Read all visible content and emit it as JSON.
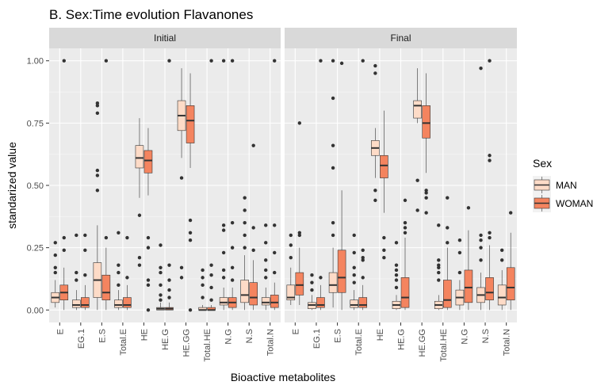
{
  "chart_data": {
    "type": "boxplot",
    "title": "B. Sex:Time evolution Flavanones",
    "xlabel": "Bioactive metabolites",
    "ylabel": "standarized value",
    "ylim": [
      -0.05,
      1.05
    ],
    "yticks": [
      "0.00",
      "0.25",
      "0.50",
      "0.75",
      "1.00"
    ],
    "grid": true,
    "categories": [
      "E",
      "EG.1",
      "E.S",
      "Total.E",
      "HE",
      "HE.G",
      "HE.GG",
      "Total.HE",
      "N.G",
      "N.S",
      "Total.N"
    ],
    "legend": {
      "title": "Sex",
      "position": "right",
      "entries": [
        {
          "name": "MAN",
          "color": "#FDDBC7"
        },
        {
          "name": "WOMAN",
          "color": "#F4845F"
        }
      ]
    },
    "panels": [
      {
        "label": "Initial",
        "series": [
          {
            "name": "MAN",
            "boxes": [
              {
                "low": 0.01,
                "q1": 0.03,
                "median": 0.05,
                "q3": 0.07,
                "high": 0.12,
                "outliers": [
                  0.15,
                  0.17,
                  0.22,
                  0.27
                ]
              },
              {
                "low": 0.0,
                "q1": 0.01,
                "median": 0.02,
                "q3": 0.04,
                "high": 0.08,
                "outliers": [
                  0.12,
                  0.15,
                  0.3
                ]
              },
              {
                "low": 0.0,
                "q1": 0.05,
                "median": 0.12,
                "q3": 0.19,
                "high": 0.34,
                "outliers": [
                  0.48,
                  0.54,
                  0.56,
                  0.79,
                  0.82,
                  0.83
                ]
              },
              {
                "low": 0.0,
                "q1": 0.01,
                "median": 0.02,
                "q3": 0.04,
                "high": 0.08,
                "outliers": [
                  0.1,
                  0.15,
                  0.18,
                  0.31
                ]
              },
              {
                "low": 0.45,
                "q1": 0.57,
                "median": 0.61,
                "q3": 0.66,
                "high": 0.77,
                "outliers": [
                  0.38,
                  0.21,
                  0.18
                ]
              },
              {
                "low": 0.0,
                "q1": 0.0,
                "median": 0.005,
                "q3": 0.01,
                "high": 0.03,
                "outliers": [
                  0.04,
                  0.06,
                  0.1,
                  0.15,
                  0.17,
                  0.26
                ]
              },
              {
                "low": 0.61,
                "q1": 0.72,
                "median": 0.78,
                "q3": 0.84,
                "high": 0.97,
                "outliers": [
                  0.53,
                  0.17,
                  0.13
                ]
              },
              {
                "low": 0.0,
                "q1": 0.0,
                "median": 0.0,
                "q3": 0.01,
                "high": 0.02,
                "outliers": [
                  0.05,
                  0.1,
                  0.13,
                  0.16
                ]
              },
              {
                "low": 0.0,
                "q1": 0.02,
                "median": 0.03,
                "q3": 0.05,
                "high": 0.09,
                "outliers": [
                  0.13,
                  0.16,
                  0.23,
                  0.32,
                  0.34,
                  1.0
                ]
              },
              {
                "low": 0.0,
                "q1": 0.03,
                "median": 0.06,
                "q3": 0.12,
                "high": 0.22,
                "outliers": [
                  0.25,
                  0.3,
                  0.35,
                  0.4,
                  0.45
                ]
              },
              {
                "low": 0.0,
                "q1": 0.02,
                "median": 0.03,
                "q3": 0.05,
                "high": 0.09,
                "outliers": [
                  0.13,
                  0.16,
                  0.2,
                  0.27,
                  0.34
                ]
              }
            ]
          },
          {
            "name": "WOMAN",
            "boxes": [
              {
                "low": 0.0,
                "q1": 0.04,
                "median": 0.07,
                "q3": 0.1,
                "high": 0.17,
                "outliers": [
                  0.24,
                  0.29,
                  1.0
                ]
              },
              {
                "low": 0.0,
                "q1": 0.01,
                "median": 0.02,
                "q3": 0.05,
                "high": 0.1,
                "outliers": [
                  0.14,
                  0.24,
                  0.3
                ]
              },
              {
                "low": 0.0,
                "q1": 0.04,
                "median": 0.07,
                "q3": 0.14,
                "high": 0.25,
                "outliers": [
                  0.29,
                  1.0
                ]
              },
              {
                "low": 0.0,
                "q1": 0.01,
                "median": 0.02,
                "q3": 0.05,
                "high": 0.1,
                "outliers": [
                  0.13,
                  0.29
                ]
              },
              {
                "low": 0.46,
                "q1": 0.55,
                "median": 0.6,
                "q3": 0.64,
                "high": 0.73,
                "outliers": [
                  0.29,
                  0.25,
                  0.12,
                  0.1,
                  0.0
                ]
              },
              {
                "low": 0.0,
                "q1": 0.0,
                "median": 0.005,
                "q3": 0.01,
                "high": 0.03,
                "outliers": [
                  0.05,
                  0.08,
                  0.12,
                  0.18,
                  1.0
                ]
              },
              {
                "low": 0.57,
                "q1": 0.67,
                "median": 0.76,
                "q3": 0.82,
                "high": 0.95,
                "outliers": [
                  0.36,
                  0.31,
                  0.28,
                  0.0
                ]
              },
              {
                "low": 0.0,
                "q1": 0.0,
                "median": 0.0,
                "q3": 0.01,
                "high": 0.02,
                "outliers": [
                  0.04,
                  0.09,
                  0.14,
                  0.18,
                  1.0
                ]
              },
              {
                "low": 0.0,
                "q1": 0.01,
                "median": 0.03,
                "q3": 0.05,
                "high": 0.09,
                "outliers": [
                  0.12,
                  0.17,
                  0.25,
                  0.35,
                  1.0
                ]
              },
              {
                "low": 0.0,
                "q1": 0.02,
                "median": 0.05,
                "q3": 0.11,
                "high": 0.2,
                "outliers": [
                  0.24,
                  0.33,
                  0.66
                ]
              },
              {
                "low": 0.0,
                "q1": 0.01,
                "median": 0.03,
                "q3": 0.06,
                "high": 0.11,
                "outliers": [
                  0.15,
                  0.23,
                  0.34,
                  1.0
                ]
              }
            ]
          }
        ]
      },
      {
        "label": "Final",
        "series": [
          {
            "name": "MAN",
            "boxes": [
              {
                "low": 0.02,
                "q1": 0.04,
                "median": 0.05,
                "q3": 0.1,
                "high": 0.17,
                "outliers": [
                  0.21,
                  0.26,
                  0.3
                ]
              },
              {
                "low": 0.0,
                "q1": 0.005,
                "median": 0.02,
                "q3": 0.03,
                "high": 0.06,
                "outliers": [
                  0.08,
                  0.11,
                  0.14
                ]
              },
              {
                "low": 0.01,
                "q1": 0.07,
                "median": 0.1,
                "q3": 0.15,
                "high": 0.25,
                "outliers": [
                  0.3,
                  0.35,
                  0.57,
                  0.66,
                  0.85,
                  1.0
                ]
              },
              {
                "low": 0.0,
                "q1": 0.01,
                "median": 0.02,
                "q3": 0.04,
                "high": 0.08,
                "outliers": [
                  0.11,
                  0.14,
                  0.17,
                  0.23,
                  0.3
                ]
              },
              {
                "low": 0.53,
                "q1": 0.62,
                "median": 0.65,
                "q3": 0.68,
                "high": 0.73,
                "outliers": [
                  0.48,
                  0.44,
                  0.95,
                  0.98
                ]
              },
              {
                "low": 0.0,
                "q1": 0.005,
                "median": 0.02,
                "q3": 0.035,
                "high": 0.06,
                "outliers": [
                  0.09,
                  0.12,
                  0.14,
                  0.16,
                  0.18,
                  0.27
                ]
              },
              {
                "low": 0.75,
                "q1": 0.77,
                "median": 0.82,
                "q3": 0.84,
                "high": 0.97,
                "outliers": [
                  0.52,
                  0.4
                ]
              },
              {
                "low": 0.0,
                "q1": 0.005,
                "median": 0.02,
                "q3": 0.035,
                "high": 0.06,
                "outliers": [
                  0.12,
                  0.15,
                  0.17,
                  0.18,
                  0.2,
                  0.34
                ]
              },
              {
                "low": 0.0,
                "q1": 0.02,
                "median": 0.05,
                "q3": 0.08,
                "high": 0.12,
                "outliers": [
                  0.15,
                  0.23,
                  0.28
                ]
              },
              {
                "low": 0.0,
                "q1": 0.03,
                "median": 0.06,
                "q3": 0.09,
                "high": 0.15,
                "outliers": [
                  0.2,
                  0.25,
                  0.28,
                  0.3,
                  0.97
                ]
              },
              {
                "low": 0.0,
                "q1": 0.02,
                "median": 0.05,
                "q3": 0.1,
                "high": 0.16,
                "outliers": [
                  0.2,
                  0.24
                ]
              }
            ]
          },
          {
            "name": "WOMAN",
            "boxes": [
              {
                "low": 0.02,
                "q1": 0.06,
                "median": 0.1,
                "q3": 0.15,
                "high": 0.25,
                "outliers": [
                  0.3,
                  0.31,
                  0.75
                ]
              },
              {
                "low": 0.0,
                "q1": 0.01,
                "median": 0.02,
                "q3": 0.05,
                "high": 0.1,
                "outliers": [
                  0.13,
                  1.0
                ]
              },
              {
                "low": 0.0,
                "q1": 0.07,
                "median": 0.13,
                "q3": 0.24,
                "high": 0.48,
                "outliers": [
                  0.99
                ]
              },
              {
                "low": 0.0,
                "q1": 0.01,
                "median": 0.02,
                "q3": 0.05,
                "high": 0.1,
                "outliers": [
                  0.13,
                  0.2,
                  0.21,
                  0.24,
                  1.0
                ]
              },
              {
                "low": 0.39,
                "q1": 0.53,
                "median": 0.58,
                "q3": 0.62,
                "high": 0.8,
                "outliers": [
                  0.29,
                  0.24,
                  0.21
                ]
              },
              {
                "low": 0.0,
                "q1": 0.01,
                "median": 0.05,
                "q3": 0.13,
                "high": 0.29,
                "outliers": [
                  0.31,
                  0.33,
                  0.35,
                  0.44
                ]
              },
              {
                "low": 0.55,
                "q1": 0.69,
                "median": 0.75,
                "q3": 0.82,
                "high": 0.95,
                "outliers": [
                  0.48,
                  0.47,
                  0.45,
                  0.39
                ]
              },
              {
                "low": 0.0,
                "q1": 0.01,
                "median": 0.04,
                "q3": 0.12,
                "high": 0.25,
                "outliers": [
                  0.27,
                  0.33,
                  0.45
                ]
              },
              {
                "low": 0.0,
                "q1": 0.03,
                "median": 0.09,
                "q3": 0.16,
                "high": 0.32,
                "outliers": [
                  0.41
                ]
              },
              {
                "low": 0.0,
                "q1": 0.04,
                "median": 0.07,
                "q3": 0.13,
                "high": 0.26,
                "outliers": [
                  0.29,
                  0.31,
                  0.6,
                  0.62,
                  1.0
                ]
              },
              {
                "low": 0.0,
                "q1": 0.04,
                "median": 0.09,
                "q3": 0.17,
                "high": 0.31,
                "outliers": [
                  0.39
                ]
              }
            ]
          }
        ]
      }
    ]
  }
}
